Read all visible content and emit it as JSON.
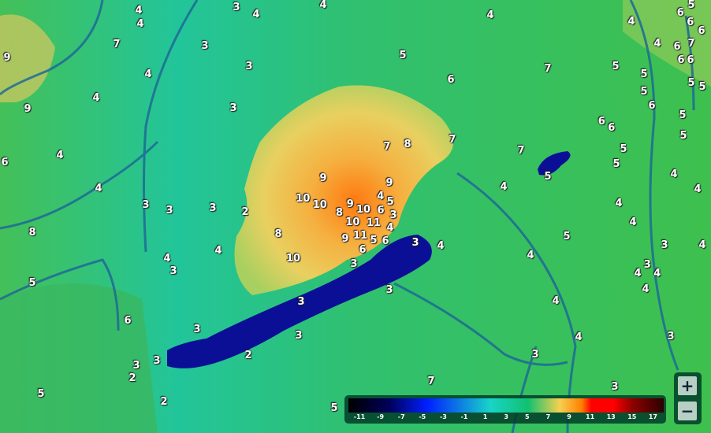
{
  "map": {
    "colors": {
      "lowland": "#3cbf52",
      "lowland_teal": "#20c8a0",
      "hills": "#f2d35a",
      "peaks": "#ff8a10",
      "lake": "#0a0f96",
      "river": "#1e6a96"
    },
    "labels": [
      "4",
      "4",
      "3",
      "4",
      "4",
      "4",
      "4",
      "6",
      "5",
      "6",
      "6",
      "7",
      "4",
      "6",
      "6",
      "6",
      "7",
      "3",
      "9",
      "3",
      "5",
      "6",
      "7",
      "5",
      "5",
      "5",
      "5",
      "5",
      "4",
      "4",
      "9",
      "3",
      "6",
      "6",
      "6",
      "5",
      "5",
      "7",
      "8",
      "7",
      "7",
      "5",
      "5",
      "4",
      "6",
      "5",
      "4",
      "9",
      "4",
      "4",
      "9",
      "4",
      "5",
      "10",
      "10",
      "9",
      "4",
      "3",
      "3",
      "3",
      "2",
      "8",
      "10",
      "10",
      "6",
      "3",
      "11",
      "4",
      "8",
      "8",
      "4",
      "11",
      "9",
      "5",
      "6",
      "5",
      "3",
      "4",
      "3",
      "4",
      "4",
      "6",
      "4",
      "4",
      "10",
      "4",
      "3",
      "3",
      "3",
      "4",
      "4",
      "5",
      "4",
      "3",
      "3",
      "4",
      "6",
      "3",
      "3",
      "4",
      "3",
      "2",
      "3",
      "3",
      "3",
      "2",
      "7",
      "5",
      "2",
      "5",
      "3"
    ]
  },
  "legend": {
    "ticks": [
      "-11",
      "-9",
      "-7",
      "-5",
      "-3",
      "-1",
      "1",
      "3",
      "5",
      "7",
      "9",
      "11",
      "13",
      "15",
      "17"
    ]
  },
  "zoom_controls": {
    "zoom_in": "+",
    "zoom_out": "−"
  }
}
